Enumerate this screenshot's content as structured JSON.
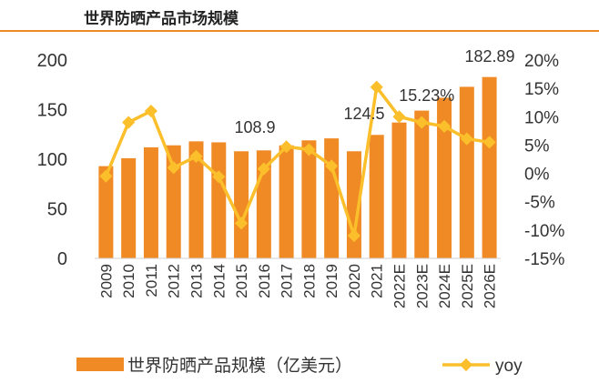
{
  "header": {
    "title": "世界防晒产品市场规模"
  },
  "colors": {
    "bar": "#f08a24",
    "line": "#fbbf2b",
    "rule": "#f08a24",
    "text": "#333333"
  },
  "chart_data": {
    "type": "bar+line",
    "categories": [
      "2009",
      "2010",
      "2011",
      "2012",
      "2013",
      "2014",
      "2015",
      "2016",
      "2017",
      "2018",
      "2019",
      "2020",
      "2021",
      "2022E",
      "2023E",
      "2024E",
      "2025E",
      "2026E"
    ],
    "series": [
      {
        "name": "世界防晒产品规模（亿美元）",
        "type": "bar",
        "axis": "left",
        "values": [
          93,
          101,
          112,
          114,
          118,
          117,
          108,
          108.9,
          114,
          119,
          121,
          108,
          124.5,
          137,
          149,
          162,
          173,
          182.89
        ]
      },
      {
        "name": "yoy",
        "type": "line",
        "axis": "right",
        "values": [
          -0.5,
          9,
          11,
          1,
          3,
          -0.6,
          -8.8,
          0.8,
          4.7,
          4.2,
          1.3,
          -11,
          15.23,
          10,
          9,
          8.3,
          6.1,
          5.5
        ]
      }
    ],
    "left_axis": {
      "ylim": [
        0,
        200
      ],
      "ticks": [
        "0",
        "50",
        "100",
        "150",
        "200"
      ]
    },
    "right_axis": {
      "ylim": [
        -15,
        20
      ],
      "ticks": [
        "-15%",
        "-10%",
        "-5%",
        "0%",
        "5%",
        "10%",
        "15%",
        "20%"
      ]
    },
    "data_labels": [
      {
        "series": 0,
        "index": 7,
        "text": "108.9"
      },
      {
        "series": 0,
        "index": 12,
        "text": "124.5"
      },
      {
        "series": 1,
        "index": 12,
        "text": "15.23%"
      },
      {
        "series": 0,
        "index": 17,
        "text": "182.89"
      }
    ],
    "legend": {
      "position": "bottom",
      "items": [
        "世界防晒产品规模（亿美元）",
        "yoy"
      ]
    },
    "grid": false
  }
}
